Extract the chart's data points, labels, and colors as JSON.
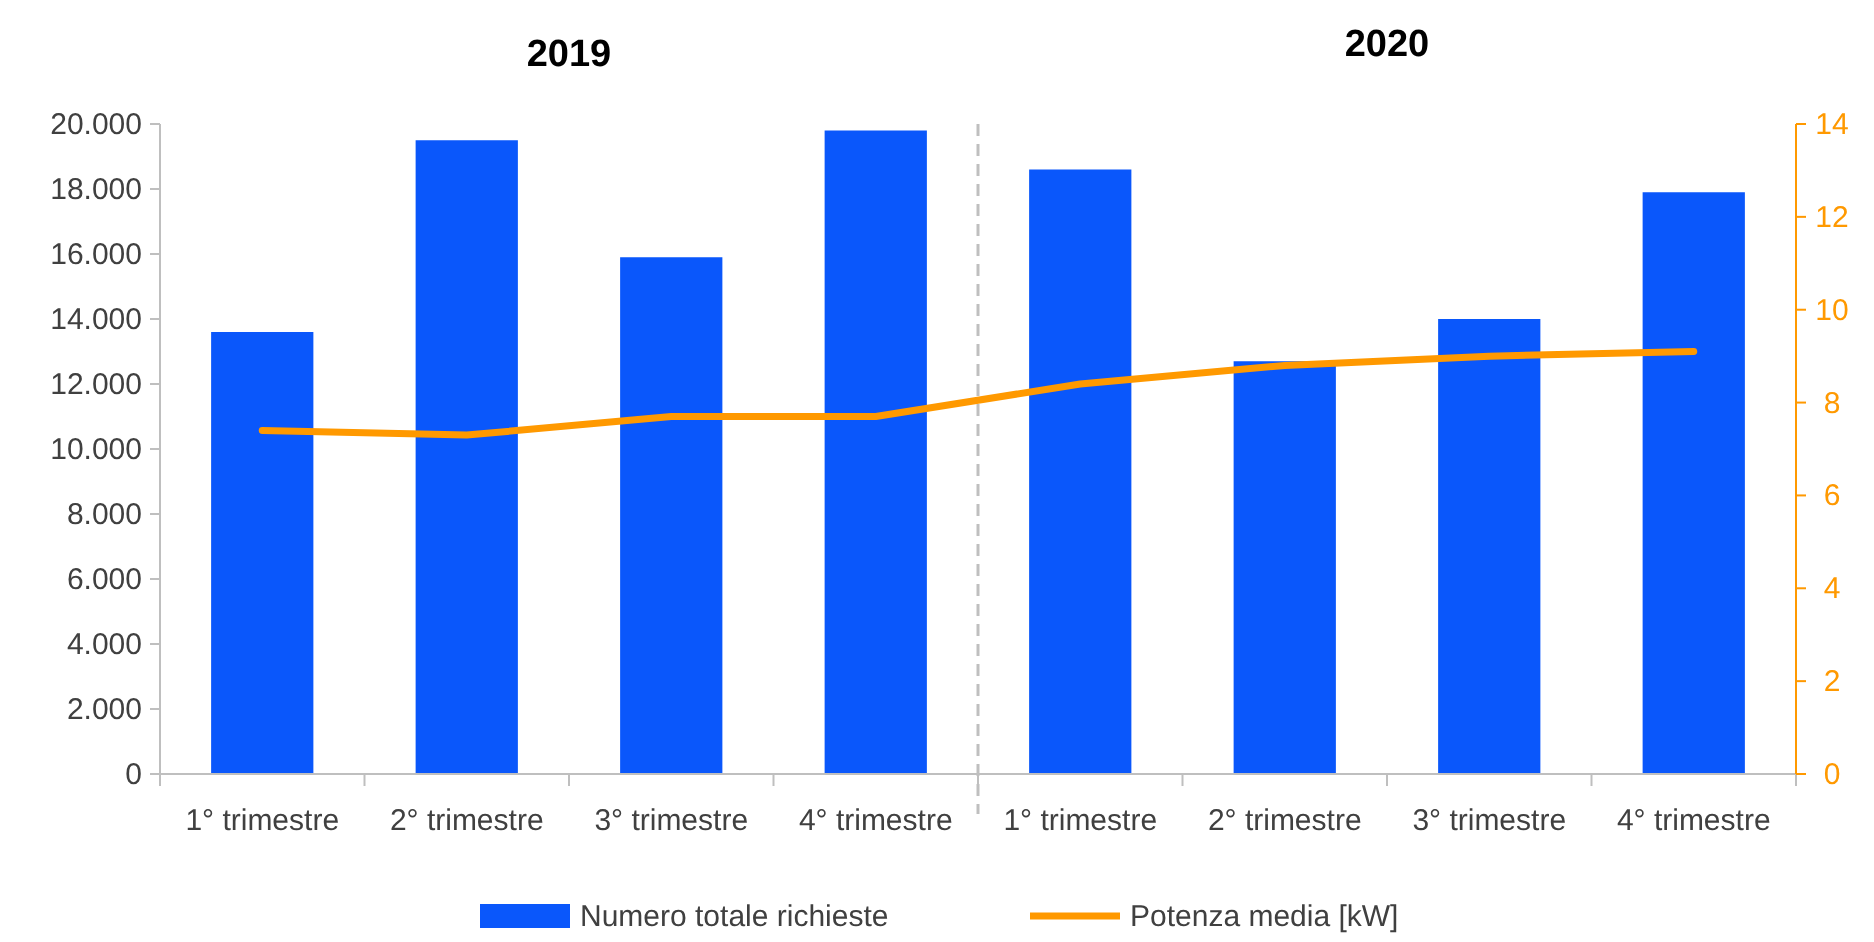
{
  "chart_data": {
    "type": "bar",
    "annotations": [
      "2019",
      "2020"
    ],
    "categories": [
      "1° trimestre",
      "2° trimestre",
      "3° trimestre",
      "4° trimestre",
      "1° trimestre",
      "2° trimestre",
      "3° trimestre",
      "4° trimestre"
    ],
    "series": [
      {
        "name": "Numero totale richieste",
        "color": "#0a57fb",
        "values": [
          13600,
          19500,
          15900,
          19800,
          18600,
          12700,
          14000,
          17900
        ]
      },
      {
        "name": "Potenza media [kW]",
        "type": "line",
        "axis": "y2",
        "color": "#ff9900",
        "values": [
          7.4,
          7.3,
          7.7,
          7.7,
          8.4,
          8.8,
          9.0,
          9.1
        ]
      }
    ],
    "ylim": [
      0,
      20000
    ],
    "yticks": [
      {
        "value": 0,
        "label": "0"
      },
      {
        "value": 2000,
        "label": "2.000"
      },
      {
        "value": 4000,
        "label": "4.000"
      },
      {
        "value": 6000,
        "label": "6.000"
      },
      {
        "value": 8000,
        "label": "8.000"
      },
      {
        "value": 10000,
        "label": "10.000"
      },
      {
        "value": 12000,
        "label": "12.000"
      },
      {
        "value": 14000,
        "label": "14.000"
      },
      {
        "value": 16000,
        "label": "16.000"
      },
      {
        "value": 18000,
        "label": "18.000"
      },
      {
        "value": 20000,
        "label": "20.000"
      }
    ],
    "y2lim": [
      0,
      14
    ],
    "y2ticks": [
      0,
      2,
      4,
      6,
      8,
      10,
      12,
      14
    ],
    "legend": "bottom",
    "grid": false
  }
}
